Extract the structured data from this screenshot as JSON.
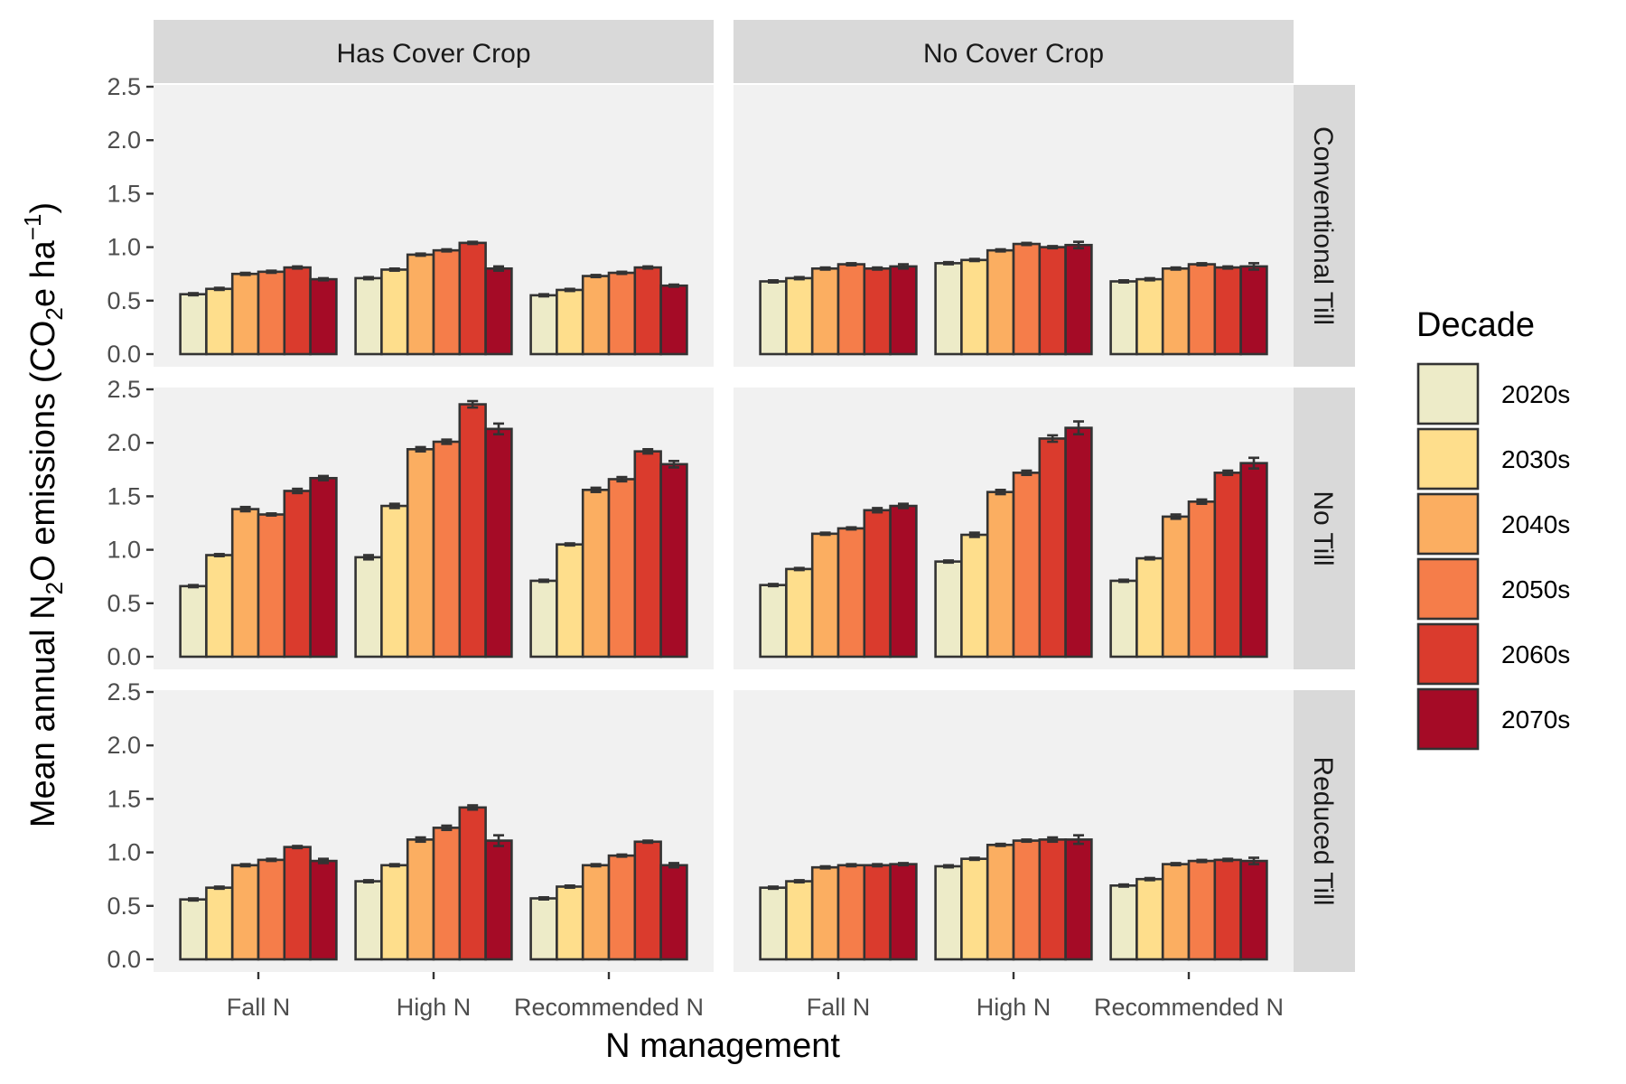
{
  "chart_data": {
    "type": "bar",
    "xlabel": "N management",
    "ylabel": "Mean annual N2O emissions (CO2e ha−1)",
    "ylabel_parts": {
      "a": "Mean annual N",
      "b": "2",
      "c": "O emissions (CO",
      "d": "2",
      "e": "e ha",
      "f": "−1",
      "g": ")"
    },
    "ylim": [
      0,
      2.5
    ],
    "yticks": [
      "0.0",
      "0.5",
      "1.0",
      "1.5",
      "2.0",
      "2.5"
    ],
    "categories": [
      "Fall N",
      "High N",
      "Recommended N"
    ],
    "facet_cols": [
      "Has Cover Crop",
      "No Cover Crop"
    ],
    "facet_rows": [
      "Conventional Till",
      "No Till",
      "Reduced Till"
    ],
    "legend": {
      "title": "Decade",
      "placement": "right",
      "items": [
        {
          "name": "2020s",
          "color": "#EDEBC8"
        },
        {
          "name": "2030s",
          "color": "#FEDE8C"
        },
        {
          "name": "2040s",
          "color": "#FBAE61"
        },
        {
          "name": "2050s",
          "color": "#F57D4A"
        },
        {
          "name": "2060s",
          "color": "#DA3B2D"
        },
        {
          "name": "2070s",
          "color": "#A50B26"
        }
      ]
    },
    "grid": false,
    "panels": [
      {
        "row": "Conventional Till",
        "col": "Has Cover Crop",
        "values": [
          [
            0.56,
            0.61,
            0.75,
            0.77,
            0.81,
            0.7
          ],
          [
            0.71,
            0.79,
            0.93,
            0.97,
            1.04,
            0.8
          ],
          [
            0.55,
            0.6,
            0.73,
            0.76,
            0.81,
            0.64
          ]
        ],
        "errors": [
          [
            0.01,
            0.01,
            0.01,
            0.01,
            0.01,
            0.01
          ],
          [
            0.01,
            0.01,
            0.01,
            0.01,
            0.01,
            0.02
          ],
          [
            0.01,
            0.01,
            0.01,
            0.01,
            0.01,
            0.01
          ]
        ]
      },
      {
        "row": "Conventional Till",
        "col": "No Cover Crop",
        "values": [
          [
            0.68,
            0.71,
            0.8,
            0.84,
            0.8,
            0.82
          ],
          [
            0.85,
            0.88,
            0.97,
            1.03,
            1.0,
            1.02
          ],
          [
            0.68,
            0.7,
            0.8,
            0.84,
            0.81,
            0.82
          ]
        ],
        "errors": [
          [
            0.01,
            0.01,
            0.01,
            0.01,
            0.01,
            0.02
          ],
          [
            0.01,
            0.01,
            0.01,
            0.01,
            0.01,
            0.03
          ],
          [
            0.01,
            0.01,
            0.01,
            0.01,
            0.01,
            0.03
          ]
        ]
      },
      {
        "row": "No Till",
        "col": "Has Cover Crop",
        "values": [
          [
            0.66,
            0.95,
            1.38,
            1.33,
            1.55,
            1.67
          ],
          [
            0.93,
            1.41,
            1.94,
            2.01,
            2.36,
            2.13
          ],
          [
            0.71,
            1.05,
            1.56,
            1.66,
            1.92,
            1.8
          ]
        ],
        "errors": [
          [
            0.01,
            0.01,
            0.02,
            0.01,
            0.02,
            0.02
          ],
          [
            0.02,
            0.02,
            0.02,
            0.02,
            0.03,
            0.05
          ],
          [
            0.01,
            0.01,
            0.02,
            0.02,
            0.02,
            0.03
          ]
        ]
      },
      {
        "row": "No Till",
        "col": "No Cover Crop",
        "values": [
          [
            0.67,
            0.82,
            1.15,
            1.2,
            1.37,
            1.41
          ],
          [
            0.89,
            1.14,
            1.54,
            1.72,
            2.04,
            2.14
          ],
          [
            0.71,
            0.92,
            1.31,
            1.45,
            1.72,
            1.81
          ]
        ],
        "errors": [
          [
            0.01,
            0.01,
            0.01,
            0.01,
            0.02,
            0.02
          ],
          [
            0.01,
            0.02,
            0.02,
            0.02,
            0.03,
            0.06
          ],
          [
            0.01,
            0.01,
            0.02,
            0.02,
            0.02,
            0.05
          ]
        ]
      },
      {
        "row": "Reduced Till",
        "col": "Has Cover Crop",
        "values": [
          [
            0.56,
            0.67,
            0.88,
            0.93,
            1.05,
            0.92
          ],
          [
            0.73,
            0.88,
            1.12,
            1.23,
            1.42,
            1.11
          ],
          [
            0.57,
            0.68,
            0.88,
            0.97,
            1.1,
            0.88
          ]
        ],
        "errors": [
          [
            0.01,
            0.01,
            0.01,
            0.01,
            0.01,
            0.02
          ],
          [
            0.01,
            0.01,
            0.02,
            0.02,
            0.02,
            0.05
          ],
          [
            0.01,
            0.01,
            0.01,
            0.01,
            0.01,
            0.02
          ]
        ]
      },
      {
        "row": "Reduced Till",
        "col": "No Cover Crop",
        "values": [
          [
            0.67,
            0.73,
            0.86,
            0.88,
            0.88,
            0.89
          ],
          [
            0.87,
            0.94,
            1.07,
            1.11,
            1.12,
            1.12
          ],
          [
            0.69,
            0.75,
            0.89,
            0.92,
            0.93,
            0.92
          ]
        ],
        "errors": [
          [
            0.01,
            0.01,
            0.01,
            0.01,
            0.01,
            0.01
          ],
          [
            0.01,
            0.01,
            0.01,
            0.01,
            0.02,
            0.04
          ],
          [
            0.01,
            0.01,
            0.01,
            0.01,
            0.01,
            0.03
          ]
        ]
      }
    ]
  }
}
